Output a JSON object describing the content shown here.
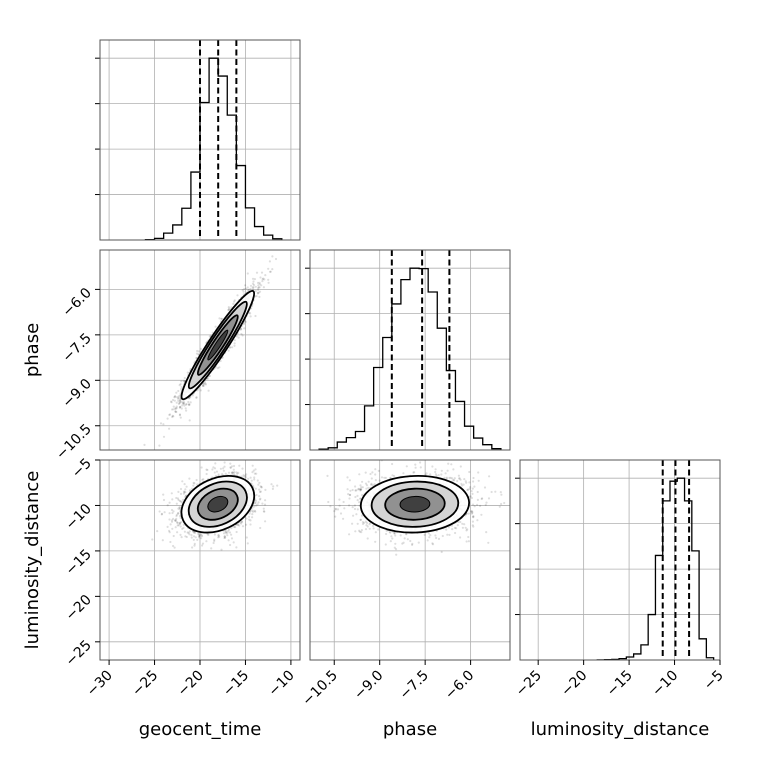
{
  "chart_data": {
    "type": "corner",
    "grid": true,
    "parameters": [
      "geocent_time",
      "phase",
      "luminosity_distance"
    ],
    "axis_labels": {
      "x": [
        "geocent_time",
        "phase",
        "luminosity_distance"
      ],
      "y": [
        "",
        "phase",
        "luminosity_distance"
      ]
    },
    "ranges": {
      "geocent_time": [
        -31.0,
        -9.0
      ],
      "phase": [
        -11.3,
        -4.7
      ],
      "luminosity_distance": [
        -27.0,
        -5.0
      ]
    },
    "ticks": {
      "geocent_time": [
        -30,
        -25,
        -20,
        -15,
        -10
      ],
      "phase": [
        -10.5,
        -9.0,
        -7.5,
        -6.0
      ],
      "luminosity_distance": [
        -25,
        -20,
        -15,
        -10,
        -5
      ]
    },
    "tick_labels": {
      "geocent_time": [
        "−30",
        "−25",
        "−20",
        "−15",
        "−10"
      ],
      "phase": [
        "−10.5",
        "−9.0",
        "−7.5",
        "−6.0"
      ],
      "luminosity_distance": [
        "−25",
        "−20",
        "−15",
        "−10",
        "−5"
      ]
    },
    "quantiles": {
      "geocent_time": [
        -20.0,
        -18.0,
        -16.0
      ],
      "phase": [
        -8.6,
        -7.6,
        -6.7
      ],
      "luminosity_distance": [
        -11.3,
        -9.9,
        -8.4
      ]
    },
    "histograms": {
      "geocent_time": {
        "bin_edges": [
          -26.0,
          -25.0,
          -24.0,
          -23.0,
          -22.0,
          -21.0,
          -20.0,
          -19.0,
          -18.0,
          -17.0,
          -16.0,
          -15.0,
          -14.0,
          -13.0,
          -12.0,
          -11.0
        ],
        "counts": [
          1,
          4,
          17,
          37,
          78,
          167,
          338,
          447,
          403,
          307,
          183,
          79,
          33,
          12,
          3
        ]
      },
      "phase": {
        "bin_edges": [
          -11.0,
          -10.7,
          -10.4,
          -10.1,
          -9.8,
          -9.5,
          -9.2,
          -8.9,
          -8.6,
          -8.3,
          -8.0,
          -7.7,
          -7.4,
          -7.1,
          -6.8,
          -6.5,
          -6.2,
          -5.9,
          -5.6,
          -5.3,
          -5.0
        ],
        "counts": [
          2,
          5,
          18,
          28,
          42,
          100,
          187,
          255,
          331,
          386,
          412,
          411,
          358,
          276,
          180,
          110,
          54,
          27,
          12,
          3
        ]
      },
      "luminosity_distance": {
        "bin_edges": [
          -18.5,
          -17.7,
          -16.9,
          -16.1,
          -15.3,
          -14.5,
          -13.7,
          -12.9,
          -12.1,
          -11.3,
          -10.5,
          -9.7,
          -8.9,
          -8.1,
          -7.3,
          -6.5,
          -5.7
        ],
        "counts": [
          1,
          2,
          4,
          9,
          20,
          40,
          100,
          300,
          690,
          1050,
          1180,
          1200,
          1050,
          720,
          140,
          15
        ]
      }
    },
    "correlations": {
      "geocent_time|phase": 0.95,
      "geocent_time|luminosity_distance": 0.3,
      "phase|luminosity_distance": 0.05
    }
  }
}
